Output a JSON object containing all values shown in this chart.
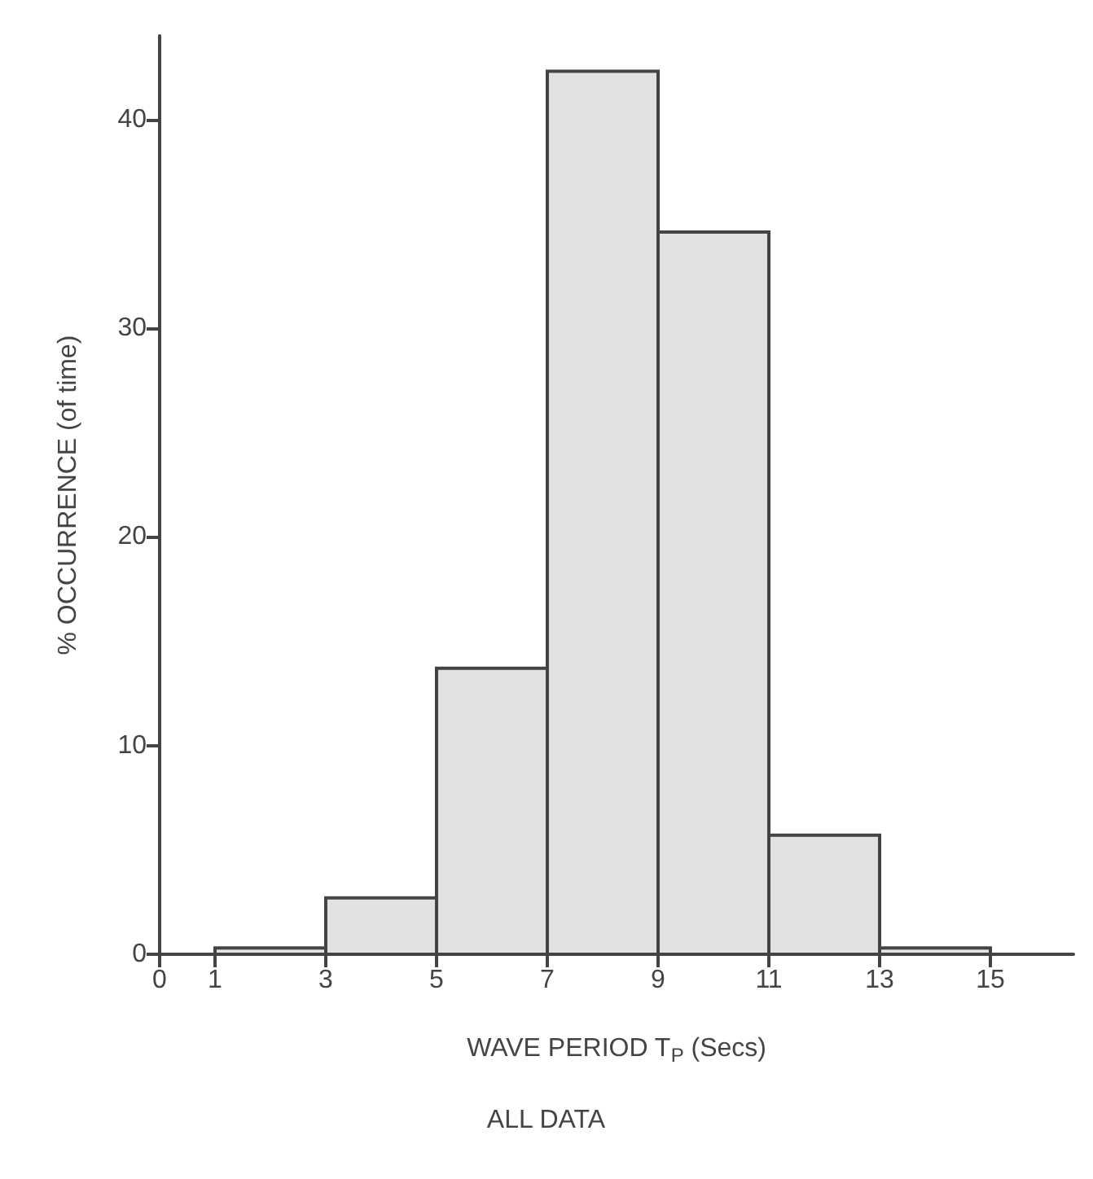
{
  "chart_data": {
    "type": "histogram",
    "xlabel": "WAVE PERIOD T$_{P}$ (Secs)",
    "ylabel": "% OCCURRENCE (of time)",
    "annotations": [
      "ALL DATA"
    ],
    "bins": [
      1,
      3,
      5,
      7,
      9,
      11,
      13,
      15
    ],
    "values": [
      0.3,
      2.7,
      13.7,
      42.3,
      34.6,
      5.7,
      0.3
    ],
    "color": "#e2e2e2",
    "xlim": [
      0,
      16.5
    ],
    "xticks": [
      0,
      1,
      3,
      5,
      7,
      9,
      11,
      13,
      15
    ],
    "ylim": [
      0,
      44
    ],
    "yticks": [
      0,
      10,
      20,
      30,
      40
    ]
  }
}
